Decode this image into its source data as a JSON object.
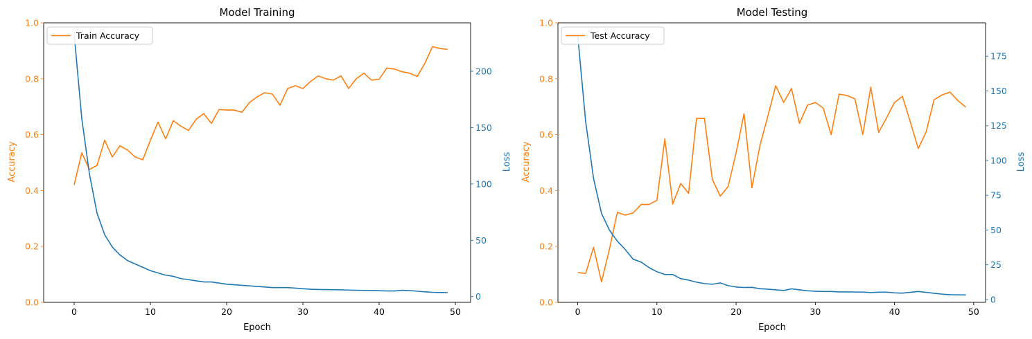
{
  "colors": {
    "accuracy": "#ff7f0e",
    "loss": "#1f77b4"
  },
  "chart_data": [
    {
      "type": "line",
      "title": "Model Training",
      "xlabel": "Epoch",
      "ylabel_left": "Accuracy",
      "ylabel_right": "Loss",
      "xlim": [
        -4,
        52
      ],
      "ylim_left": [
        0,
        1
      ],
      "ylim_right": [
        -5.1,
        243.0
      ],
      "xticks": [
        0,
        10,
        20,
        30,
        40,
        50
      ],
      "yticks_left": [
        0.0,
        0.2,
        0.4,
        0.6,
        0.8,
        1.0
      ],
      "yticks_right": [
        0,
        50,
        100,
        150,
        200
      ],
      "legend": "upper left",
      "grid": false,
      "x": [
        0,
        1,
        2,
        3,
        4,
        5,
        6,
        7,
        8,
        9,
        10,
        11,
        12,
        13,
        14,
        15,
        16,
        17,
        18,
        19,
        20,
        21,
        22,
        23,
        24,
        25,
        26,
        27,
        28,
        29,
        30,
        31,
        32,
        33,
        34,
        35,
        36,
        37,
        38,
        39,
        40,
        41,
        42,
        43,
        44,
        45,
        46,
        47,
        48,
        49
      ],
      "series": [
        {
          "name": "Train Accuracy",
          "axis": "left",
          "values": [
            0.42,
            0.535,
            0.475,
            0.49,
            0.58,
            0.52,
            0.56,
            0.545,
            0.52,
            0.51,
            0.58,
            0.645,
            0.585,
            0.65,
            0.63,
            0.615,
            0.655,
            0.675,
            0.64,
            0.69,
            0.688,
            0.688,
            0.68,
            0.715,
            0.735,
            0.75,
            0.745,
            0.705,
            0.765,
            0.775,
            0.765,
            0.79,
            0.81,
            0.8,
            0.795,
            0.81,
            0.765,
            0.8,
            0.82,
            0.795,
            0.798,
            0.838,
            0.835,
            0.825,
            0.82,
            0.808,
            0.855,
            0.915,
            0.908,
            0.905
          ]
        },
        {
          "axis": "right",
          "values": [
            233,
            158,
            109,
            74,
            55,
            44,
            37,
            32,
            29,
            26,
            23,
            21,
            19,
            18,
            16,
            15,
            14,
            13,
            13,
            12,
            11,
            10.5,
            10,
            9.5,
            9,
            8.5,
            8,
            8,
            8,
            7.5,
            7,
            6.5,
            6.3,
            6.2,
            6.1,
            6,
            5.8,
            5.6,
            5.5,
            5.4,
            5.2,
            5,
            5,
            5.6,
            5.3,
            4.8,
            4.2,
            3.8,
            3.6,
            3.5
          ]
        }
      ]
    },
    {
      "type": "line",
      "title": "Model Testing",
      "xlabel": "Epoch",
      "ylabel_left": "Accuracy",
      "ylabel_right": "Loss",
      "xlim": [
        -2.5,
        51.5
      ],
      "ylim_left": [
        0,
        1
      ],
      "ylim_right": [
        -2.0,
        199.0
      ],
      "xticks": [
        0,
        10,
        20,
        30,
        40,
        50
      ],
      "yticks_left": [
        0.0,
        0.2,
        0.4,
        0.6,
        0.8,
        1.0
      ],
      "yticks_right": [
        0,
        25,
        50,
        75,
        100,
        125,
        150,
        175
      ],
      "legend": "upper left",
      "grid": false,
      "x": [
        0,
        1,
        2,
        3,
        4,
        5,
        6,
        7,
        8,
        9,
        10,
        11,
        12,
        13,
        14,
        15,
        16,
        17,
        18,
        19,
        20,
        21,
        22,
        23,
        24,
        25,
        26,
        27,
        28,
        29,
        30,
        31,
        32,
        33,
        34,
        35,
        36,
        37,
        38,
        39,
        40,
        41,
        42,
        43,
        44,
        45,
        46,
        47,
        48,
        49
      ],
      "series": [
        {
          "name": "Test Accuracy",
          "axis": "left",
          "values": [
            0.107,
            0.103,
            0.197,
            0.073,
            0.19,
            0.322,
            0.312,
            0.32,
            0.35,
            0.35,
            0.365,
            0.585,
            0.352,
            0.425,
            0.39,
            0.658,
            0.658,
            0.44,
            0.38,
            0.415,
            0.535,
            0.675,
            0.41,
            0.56,
            0.665,
            0.775,
            0.715,
            0.765,
            0.64,
            0.705,
            0.715,
            0.695,
            0.6,
            0.745,
            0.74,
            0.728,
            0.6,
            0.77,
            0.608,
            0.66,
            0.715,
            0.737,
            0.645,
            0.55,
            0.61,
            0.725,
            0.742,
            0.752,
            0.722,
            0.698
          ]
        },
        {
          "axis": "right",
          "values": [
            190,
            128,
            87,
            62,
            50,
            42,
            36,
            29,
            27,
            23,
            20,
            18,
            18,
            15,
            14,
            12.5,
            11.5,
            11,
            12,
            10,
            9,
            8.7,
            8.8,
            7.8,
            7.5,
            7,
            6.5,
            7.7,
            7,
            6.3,
            6,
            5.8,
            5.8,
            5.5,
            5.5,
            5.4,
            5.4,
            5,
            5.3,
            5.3,
            4.8,
            4.6,
            5.2,
            5.8,
            5.2,
            4.5,
            3.9,
            3.5,
            3.4,
            3.3
          ]
        }
      ]
    }
  ]
}
